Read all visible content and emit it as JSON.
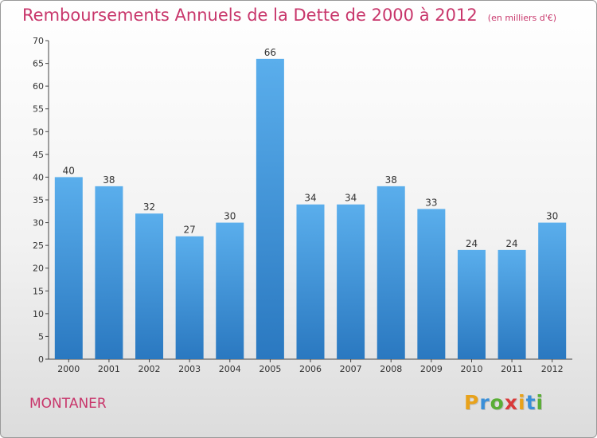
{
  "chart_data": {
    "type": "bar",
    "title": "Remboursements Annuels de la Dette de 2000 à 2012",
    "unit": "(en milliers d'€)",
    "categories": [
      "2000",
      "2001",
      "2002",
      "2003",
      "2004",
      "2005",
      "2006",
      "2007",
      "2008",
      "2009",
      "2010",
      "2011",
      "2012"
    ],
    "values": [
      40,
      38,
      32,
      27,
      30,
      66,
      34,
      34,
      38,
      33,
      24,
      24,
      30
    ],
    "ylim": [
      0,
      70
    ],
    "yticks": [
      0,
      5,
      10,
      15,
      20,
      25,
      30,
      35,
      40,
      45,
      50,
      55,
      60,
      65,
      70
    ],
    "grid": false,
    "bar_color": "#3a8fd8"
  },
  "commune": "MONTANER",
  "logo": {
    "letters": [
      "P",
      "r",
      "o",
      "x",
      "i",
      "t",
      "i"
    ],
    "colors": [
      "#e8a21b",
      "#3a8fd8",
      "#5aae36",
      "#d93a3a",
      "#e8a21b",
      "#3a8fd8",
      "#5aae36"
    ]
  }
}
